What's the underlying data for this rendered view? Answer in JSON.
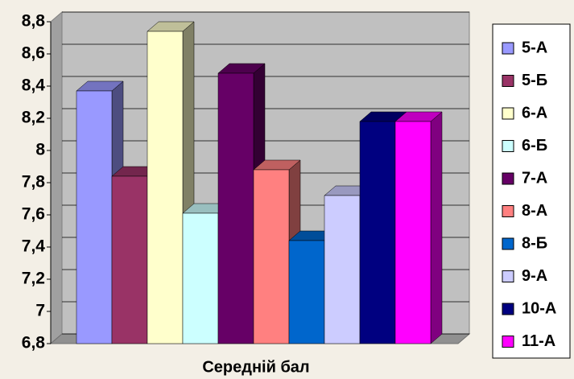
{
  "chart_data": {
    "type": "bar",
    "categories": [
      "Середній бал"
    ],
    "series": [
      {
        "name": "5-А",
        "color": "#9999ff",
        "values": [
          8.37
        ]
      },
      {
        "name": "5-Б",
        "color": "#993366",
        "values": [
          7.84
        ]
      },
      {
        "name": "6-А",
        "color": "#ffffcc",
        "values": [
          8.74
        ]
      },
      {
        "name": "6-Б",
        "color": "#ccffff",
        "values": [
          7.61
        ]
      },
      {
        "name": "7-А",
        "color": "#660066",
        "values": [
          8.48
        ]
      },
      {
        "name": "8-А",
        "color": "#ff8080",
        "values": [
          7.88
        ]
      },
      {
        "name": "8-Б",
        "color": "#0066cc",
        "values": [
          7.44
        ]
      },
      {
        "name": "9-А",
        "color": "#ccccff",
        "values": [
          7.72
        ]
      },
      {
        "name": "10-А",
        "color": "#000080",
        "values": [
          8.18
        ]
      },
      {
        "name": "11-А",
        "color": "#ff00ff",
        "values": [
          8.18
        ]
      }
    ],
    "ylim": [
      6.8,
      8.8
    ],
    "yticks": [
      {
        "value": 6.8,
        "label": "6,8"
      },
      7,
      {
        "value": 7.2,
        "label": "7,2"
      },
      {
        "value": 7.4,
        "label": "7,4"
      },
      {
        "value": 7.6,
        "label": "7,6"
      },
      {
        "value": 7.8,
        "label": "7,8"
      },
      8,
      {
        "value": 8.2,
        "label": "8,2"
      },
      {
        "value": 8.4,
        "label": "8,4"
      },
      {
        "value": 8.6,
        "label": "8,6"
      },
      {
        "value": 8.8,
        "label": "8,8"
      }
    ],
    "grid": true,
    "legend": "right"
  }
}
